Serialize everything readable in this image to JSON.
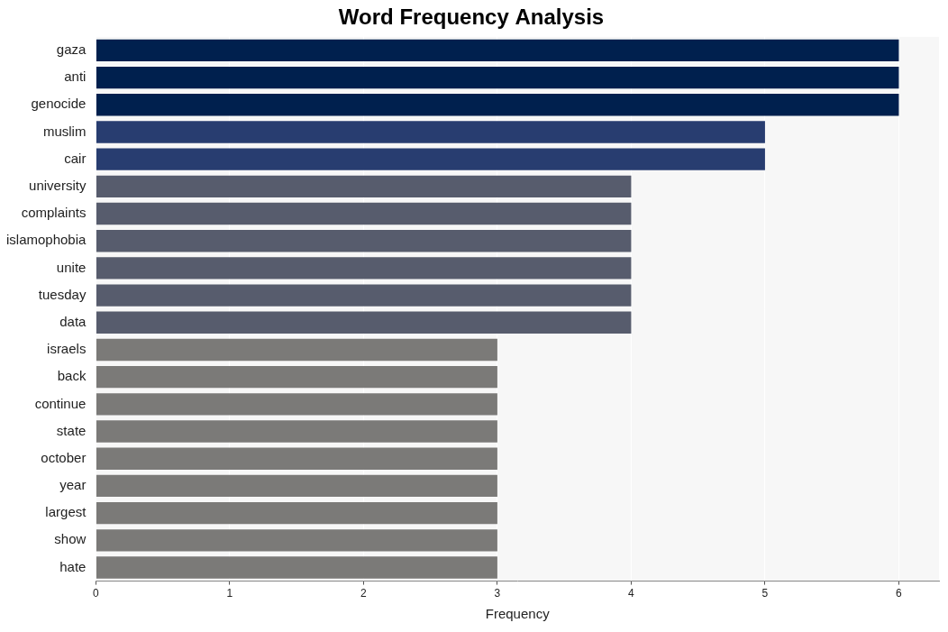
{
  "chart_data": {
    "type": "bar",
    "orientation": "horizontal",
    "title": "Word Frequency Analysis",
    "x_label": "Frequency",
    "categories": [
      "gaza",
      "anti",
      "genocide",
      "muslim",
      "cair",
      "university",
      "complaints",
      "islamophobia",
      "unite",
      "tuesday",
      "data",
      "israels",
      "back",
      "continue",
      "state",
      "october",
      "year",
      "largest",
      "show",
      "hate"
    ],
    "values": [
      6,
      6,
      6,
      5,
      5,
      4,
      4,
      4,
      4,
      4,
      4,
      3,
      3,
      3,
      3,
      3,
      3,
      3,
      3,
      3
    ],
    "colors": [
      "#00204e",
      "#00204e",
      "#00204e",
      "#283d70",
      "#283d70",
      "#575c6d",
      "#575c6d",
      "#575c6d",
      "#575c6d",
      "#575c6d",
      "#575c6d",
      "#7b7a78",
      "#7b7a78",
      "#7b7a78",
      "#7b7a78",
      "#7b7a78",
      "#7b7a78",
      "#7b7a78",
      "#7b7a78",
      "#7b7a78"
    ],
    "xlim": [
      0,
      6.3
    ],
    "xticks": [
      0,
      1,
      2,
      3,
      4,
      5,
      6
    ],
    "grid": true
  }
}
